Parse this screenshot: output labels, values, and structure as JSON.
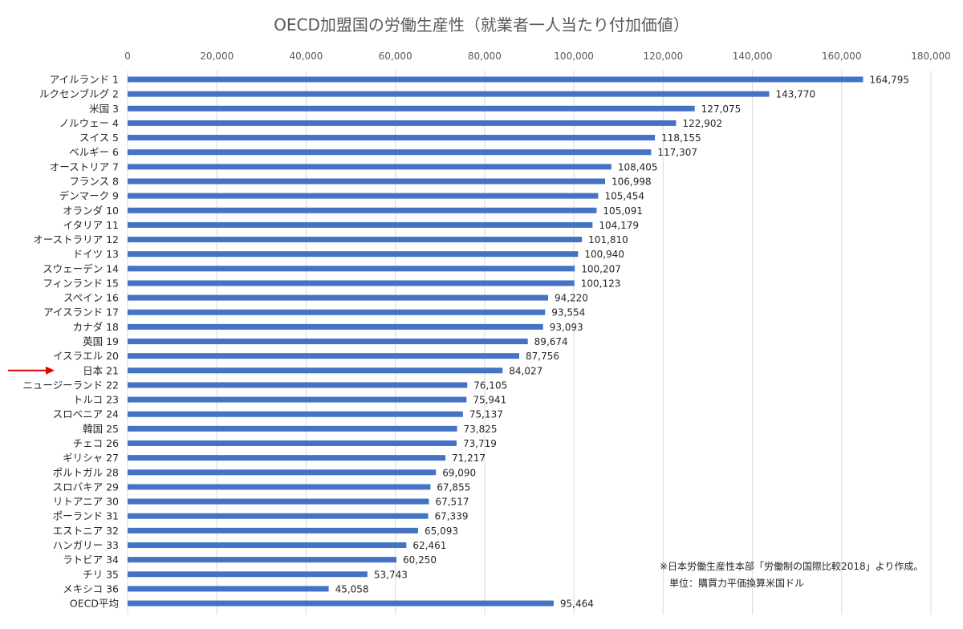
{
  "chart_data": {
    "type": "bar",
    "orientation": "horizontal",
    "title": "OECD加盟国の労働生産性（就業者一人当たり付加価値）",
    "xlim": [
      0,
      180000
    ],
    "xticks": [
      "0",
      "20,000",
      "40,000",
      "60,000",
      "80,000",
      "100,000",
      "120,000",
      "140,000",
      "160,000",
      "180,000"
    ],
    "grid": true,
    "bar_color": "#4472c4",
    "highlight_color": "#e00000",
    "highlight_index": 20,
    "categories": [
      "アイルランド 1",
      "ルクセンブルグ 2",
      "米国 3",
      "ノルウェー 4",
      "スイス 5",
      "ベルギー 6",
      "オーストリア 7",
      "フランス 8",
      "デンマーク 9",
      "オランダ 10",
      "イタリア 11",
      "オーストラリア 12",
      "ドイツ 13",
      "スウェーデン 14",
      "フィンランド 15",
      "スペイン 16",
      "アイスランド 17",
      "カナダ 18",
      "英国 19",
      "イスラエル 20",
      "日本 21",
      "ニュージーランド 22",
      "トルコ 23",
      "スロベニア 24",
      "韓国 25",
      "チェコ 26",
      "ギリシャ 27",
      "ポルトガル 28",
      "スロバキア 29",
      "リトアニア 30",
      "ポーランド 31",
      "エストニア 32",
      "ハンガリー 33",
      "ラトビア 34",
      "チリ 35",
      "メキシコ 36",
      "OECD平均"
    ],
    "values": [
      164795,
      143770,
      127075,
      122902,
      118155,
      117307,
      108405,
      106998,
      105454,
      105091,
      104179,
      101810,
      100940,
      100207,
      100123,
      94220,
      93554,
      93093,
      89674,
      87756,
      84027,
      76105,
      75941,
      75137,
      73825,
      73719,
      71217,
      69090,
      67855,
      67517,
      67339,
      65093,
      62461,
      60250,
      53743,
      45058,
      95464
    ],
    "value_labels": [
      "164,795",
      "143,770",
      "127,075",
      "122,902",
      "118,155",
      "117,307",
      "108,405",
      "106,998",
      "105,454",
      "105,091",
      "104,179",
      "101,810",
      "100,940",
      "100,207",
      "100,123",
      "94,220",
      "93,554",
      "93,093",
      "89,674",
      "87,756",
      "84,027",
      "76,105",
      "75,941",
      "75,137",
      "73,825",
      "73,719",
      "71,217",
      "69,090",
      "67,855",
      "67,517",
      "67,339",
      "65,093",
      "62,461",
      "60,250",
      "53,743",
      "45,058",
      "95,464"
    ],
    "notes": [
      "※日本労働生産性本部「労働制の国際比較2018」より作成。",
      "単位：購買力平価換算米国ドル"
    ]
  }
}
